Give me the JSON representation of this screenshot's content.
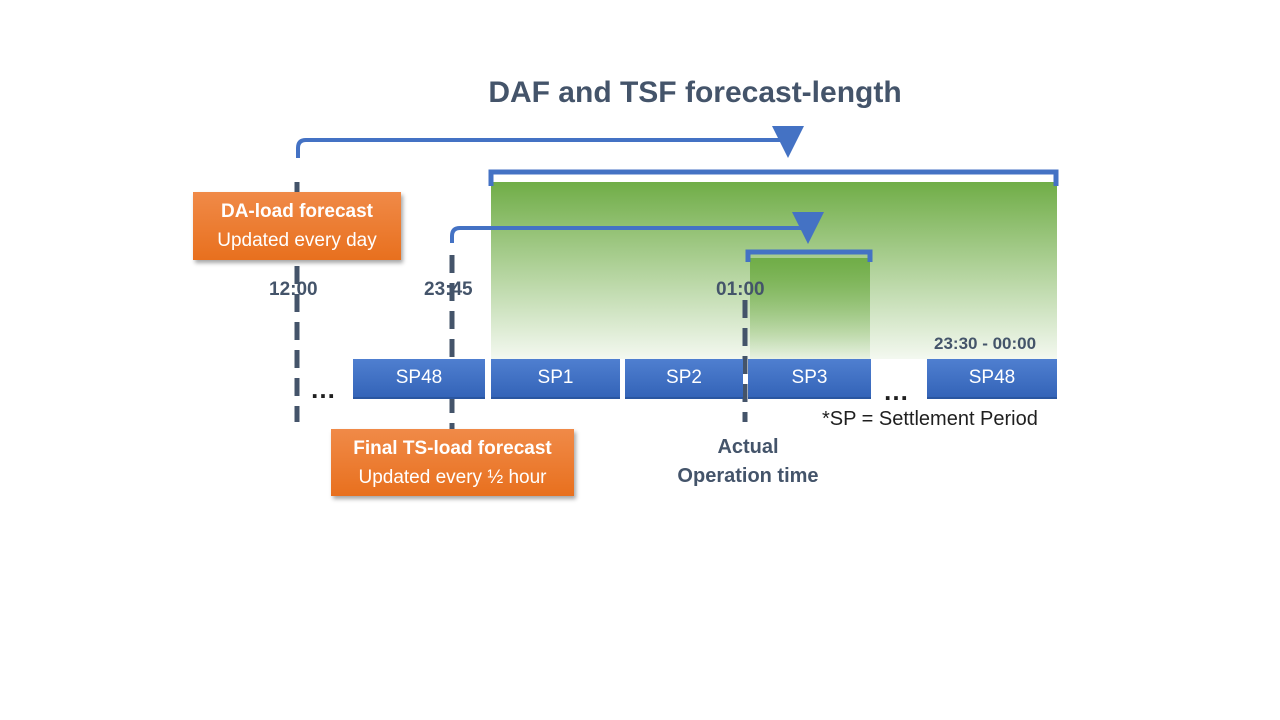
{
  "title": "DAF and TSF forecast-length",
  "times": {
    "t1": "12:00",
    "t2": "23:45",
    "t3": "01:00",
    "range": "23:30 - 00:00"
  },
  "settlement_periods": [
    "SP48",
    "SP1",
    "SP2",
    "SP3",
    "SP48"
  ],
  "ellipsis": "…",
  "callouts": {
    "da": {
      "title": "DA-load forecast",
      "subtitle": "Updated every day"
    },
    "ts": {
      "title": "Final TS-load forecast",
      "subtitle": "Updated every ½ hour"
    }
  },
  "actual_operation": {
    "line1": "Actual",
    "line2": "Operation time"
  },
  "footnote": "*SP = Settlement Period",
  "colors": {
    "title": "#44546a",
    "blue": "#4472c4",
    "green": "#70ad47",
    "orange": "#ed7d31",
    "dashed": "#44546a"
  }
}
